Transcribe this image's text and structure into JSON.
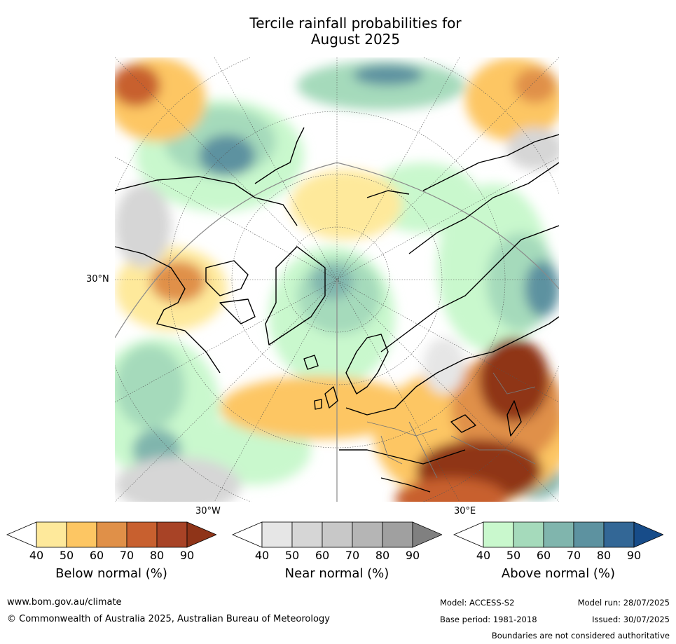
{
  "title": "Tercile rainfall probabilities for\nAugust 2025",
  "map": {
    "lat_tick": "30°N",
    "lon_ticks": [
      "30°W",
      "30°E"
    ]
  },
  "colorbars": [
    {
      "label": "Below normal (%)",
      "ticks": [
        "40",
        "50",
        "60",
        "70",
        "80",
        "90"
      ],
      "colors": [
        "#ffffff",
        "#fee99b",
        "#fdc663",
        "#e09048",
        "#c8602f",
        "#a84326",
        "#8f3418"
      ]
    },
    {
      "label": "Near normal (%)",
      "ticks": [
        "40",
        "50",
        "60",
        "70",
        "80",
        "90"
      ],
      "colors": [
        "#ffffff",
        "#e6e6e6",
        "#d6d6d6",
        "#c8c8c8",
        "#b5b5b5",
        "#a0a0a0",
        "#808080"
      ]
    },
    {
      "label": "Above normal (%)",
      "ticks": [
        "40",
        "50",
        "60",
        "70",
        "80",
        "90"
      ],
      "colors": [
        "#ffffff",
        "#c9f8cd",
        "#a5dabb",
        "#80b5ad",
        "#5d92a0",
        "#336796",
        "#174c89"
      ]
    }
  ],
  "footer": {
    "website": "www.bom.gov.au/climate",
    "copyright": "© Commonwealth of Australia 2025, Australian Bureau of Meteorology",
    "model": "Model: ACCESS-S2",
    "model_run": "Model run: 28/07/2025",
    "base_period": "Base period: 1981-2018",
    "issued": "Issued: 30/07/2025",
    "disclaimer": "Boundaries are not considered authoritative"
  }
}
